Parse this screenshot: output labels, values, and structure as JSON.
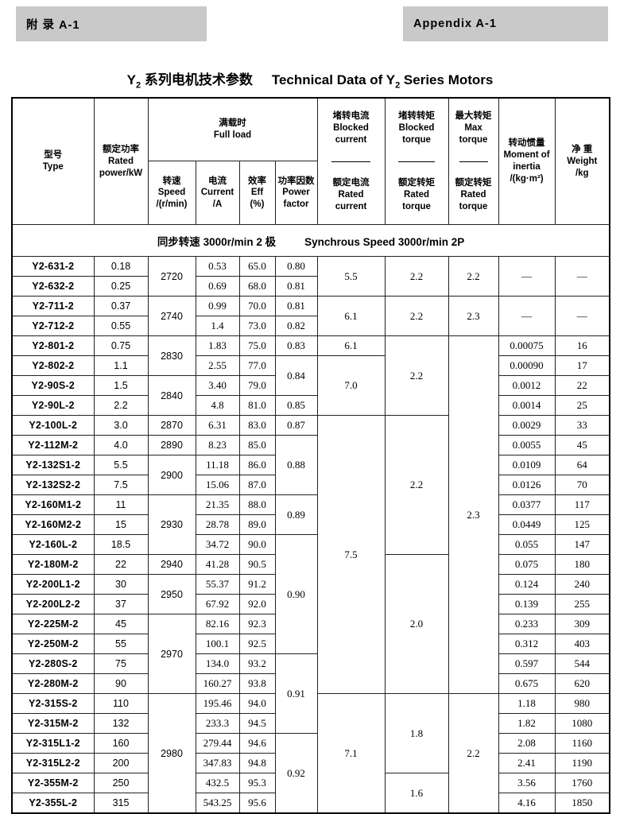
{
  "tags": {
    "left": "附 录 A-1",
    "right": "Appendix A-1"
  },
  "title": {
    "zh_pre": "Y",
    "zh_sub": "2",
    "zh_rest": " 系列电机技术参数",
    "en_pre": "Technical Data of Y",
    "en_sub": "2",
    "en_rest": " Series Motors"
  },
  "table": {
    "header": {
      "type": "型号\nType",
      "power": "额定功率\nRated\npower/kW",
      "full_load": "满载时\nFull load",
      "speed": "转速\nSpeed\n/(r/min)",
      "current": "电流\nCurrent\n/A",
      "eff": "效率\nEff\n(%)",
      "pf": "功率因数\nPower\nfactor",
      "blocked_current_top": "堵转电流\nBlocked\ncurrent",
      "blocked_current_bottom": "额定电流\nRated\ncurrent",
      "blocked_torque_top": "堵转转矩\nBlocked\ntorque",
      "blocked_torque_bottom": "额定转矩\nRated\ntorque",
      "max_torque_top": "最大转矩\nMax\ntorque",
      "max_torque_bottom": "额定转矩\nRated\ntorque",
      "inertia": "转动惯量\nMoment of\ninertia\n/(kg·m²)",
      "weight": "净 重\nWeight\n/kg"
    },
    "section_zh": "同步转速 3000r/min 2 极",
    "section_en": "Synchrous Speed 3000r/min 2P",
    "col_order": [
      "type",
      "power",
      "speed",
      "current",
      "eff",
      "pf",
      "blk_i",
      "blk_t",
      "max_t",
      "inertia",
      "weight"
    ],
    "rows": [
      {
        "type": "Y2-631-2",
        "power": "0.18",
        "speed": {
          "v": "2720",
          "rs": 2
        },
        "current": "0.53",
        "eff": "65.0",
        "pf": "0.80",
        "blk_i": {
          "v": "5.5",
          "rs": 2
        },
        "blk_t": {
          "v": "2.2",
          "rs": 2
        },
        "max_t": {
          "v": "2.2",
          "rs": 2
        },
        "inertia": {
          "v": "—",
          "rs": 2
        },
        "weight": {
          "v": "—",
          "rs": 2
        }
      },
      {
        "type": "Y2-632-2",
        "power": "0.25",
        "current": "0.69",
        "eff": "68.0",
        "pf": "0.81"
      },
      {
        "type": "Y2-711-2",
        "power": "0.37",
        "speed": {
          "v": "2740",
          "rs": 2
        },
        "current": "0.99",
        "eff": "70.0",
        "pf": "0.81",
        "blk_i": {
          "v": "6.1",
          "rs": 2
        },
        "blk_t": {
          "v": "2.2",
          "rs": 2
        },
        "max_t": {
          "v": "2.3",
          "rs": 2
        },
        "inertia": {
          "v": "—",
          "rs": 2
        },
        "weight": {
          "v": "—",
          "rs": 2
        }
      },
      {
        "type": "Y2-712-2",
        "power": "0.55",
        "current": "1.4",
        "eff": "73.0",
        "pf": "0.82"
      },
      {
        "type": "Y2-801-2",
        "power": "0.75",
        "speed": {
          "v": "2830",
          "rs": 2
        },
        "current": "1.83",
        "eff": "75.0",
        "pf": "0.83",
        "blk_i": "6.1",
        "blk_t": {
          "v": "2.2",
          "rs": 4
        },
        "max_t": {
          "v": "2.3",
          "rs": 18
        },
        "inertia": "0.00075",
        "weight": "16"
      },
      {
        "type": "Y2-802-2",
        "power": "1.1",
        "current": "2.55",
        "eff": "77.0",
        "pf": {
          "v": "0.84",
          "rs": 2
        },
        "blk_i": {
          "v": "7.0",
          "rs": 3
        },
        "inertia": "0.00090",
        "weight": "17"
      },
      {
        "type": "Y2-90S-2",
        "power": "1.5",
        "speed": {
          "v": "2840",
          "rs": 2
        },
        "current": "3.40",
        "eff": "79.0",
        "inertia": "0.0012",
        "weight": "22"
      },
      {
        "type": "Y2-90L-2",
        "power": "2.2",
        "current": "4.8",
        "eff": "81.0",
        "pf": "0.85",
        "inertia": "0.0014",
        "weight": "25"
      },
      {
        "type": "Y2-100L-2",
        "power": "3.0",
        "speed": "2870",
        "current": "6.31",
        "eff": "83.0",
        "pf": "0.87",
        "blk_i": {
          "v": "7.5",
          "rs": 14
        },
        "blk_t": {
          "v": "2.2",
          "rs": 7
        },
        "inertia": "0.0029",
        "weight": "33"
      },
      {
        "type": "Y2-112M-2",
        "power": "4.0",
        "speed": "2890",
        "current": "8.23",
        "eff": "85.0",
        "pf": {
          "v": "0.88",
          "rs": 3
        },
        "inertia": "0.0055",
        "weight": "45"
      },
      {
        "type": "Y2-132S1-2",
        "power": "5.5",
        "speed": {
          "v": "2900",
          "rs": 2
        },
        "current": "11.18",
        "eff": "86.0",
        "inertia": "0.0109",
        "weight": "64"
      },
      {
        "type": "Y2-132S2-2",
        "power": "7.5",
        "current": "15.06",
        "eff": "87.0",
        "inertia": "0.0126",
        "weight": "70"
      },
      {
        "type": "Y2-160M1-2",
        "power": "11",
        "speed": {
          "v": "2930",
          "rs": 3
        },
        "current": "21.35",
        "eff": "88.0",
        "pf": {
          "v": "0.89",
          "rs": 2
        },
        "inertia": "0.0377",
        "weight": "117"
      },
      {
        "type": "Y2-160M2-2",
        "power": "15",
        "current": "28.78",
        "eff": "89.0",
        "inertia": "0.0449",
        "weight": "125"
      },
      {
        "type": "Y2-160L-2",
        "power": "18.5",
        "current": "34.72",
        "eff": "90.0",
        "pf": {
          "v": "0.90",
          "rs": 6
        },
        "inertia": "0.055",
        "weight": "147"
      },
      {
        "type": "Y2-180M-2",
        "power": "22",
        "speed": "2940",
        "current": "41.28",
        "eff": "90.5",
        "blk_t": {
          "v": "2.0",
          "rs": 7
        },
        "inertia": "0.075",
        "weight": "180"
      },
      {
        "type": "Y2-200L1-2",
        "power": "30",
        "speed": {
          "v": "2950",
          "rs": 2
        },
        "current": "55.37",
        "eff": "91.2",
        "inertia": "0.124",
        "weight": "240"
      },
      {
        "type": "Y2-200L2-2",
        "power": "37",
        "current": "67.92",
        "eff": "92.0",
        "inertia": "0.139",
        "weight": "255"
      },
      {
        "type": "Y2-225M-2",
        "power": "45",
        "speed": {
          "v": "2970",
          "rs": 4
        },
        "current": "82.16",
        "eff": "92.3",
        "inertia": "0.233",
        "weight": "309"
      },
      {
        "type": "Y2-250M-2",
        "power": "55",
        "current": "100.1",
        "eff": "92.5",
        "inertia": "0.312",
        "weight": "403"
      },
      {
        "type": "Y2-280S-2",
        "power": "75",
        "current": "134.0",
        "eff": "93.2",
        "pf": {
          "v": "0.91",
          "rs": 4
        },
        "inertia": "0.597",
        "weight": "544"
      },
      {
        "type": "Y2-280M-2",
        "power": "90",
        "current": "160.27",
        "eff": "93.8",
        "inertia": "0.675",
        "weight": "620"
      },
      {
        "type": "Y2-315S-2",
        "power": "110",
        "speed": {
          "v": "2980",
          "rs": 6
        },
        "current": "195.46",
        "eff": "94.0",
        "blk_i": {
          "v": "7.1",
          "rs": 6
        },
        "blk_t": {
          "v": "1.8",
          "rs": 4
        },
        "max_t": {
          "v": "2.2",
          "rs": 6
        },
        "inertia": "1.18",
        "weight": "980"
      },
      {
        "type": "Y2-315M-2",
        "power": "132",
        "current": "233.3",
        "eff": "94.5",
        "inertia": "1.82",
        "weight": "1080"
      },
      {
        "type": "Y2-315L1-2",
        "power": "160",
        "current": "279.44",
        "eff": "94.6",
        "pf": {
          "v": "0.92",
          "rs": 4
        },
        "inertia": "2.08",
        "weight": "1160"
      },
      {
        "type": "Y2-315L2-2",
        "power": "200",
        "current": "347.83",
        "eff": "94.8",
        "inertia": "2.41",
        "weight": "1190"
      },
      {
        "type": "Y2-355M-2",
        "power": "250",
        "current": "432.5",
        "eff": "95.3",
        "blk_t": {
          "v": "1.6",
          "rs": 2
        },
        "inertia": "3.56",
        "weight": "1760"
      },
      {
        "type": "Y2-355L-2",
        "power": "315",
        "current": "543.25",
        "eff": "95.6",
        "inertia": "4.16",
        "weight": "1850"
      }
    ]
  }
}
